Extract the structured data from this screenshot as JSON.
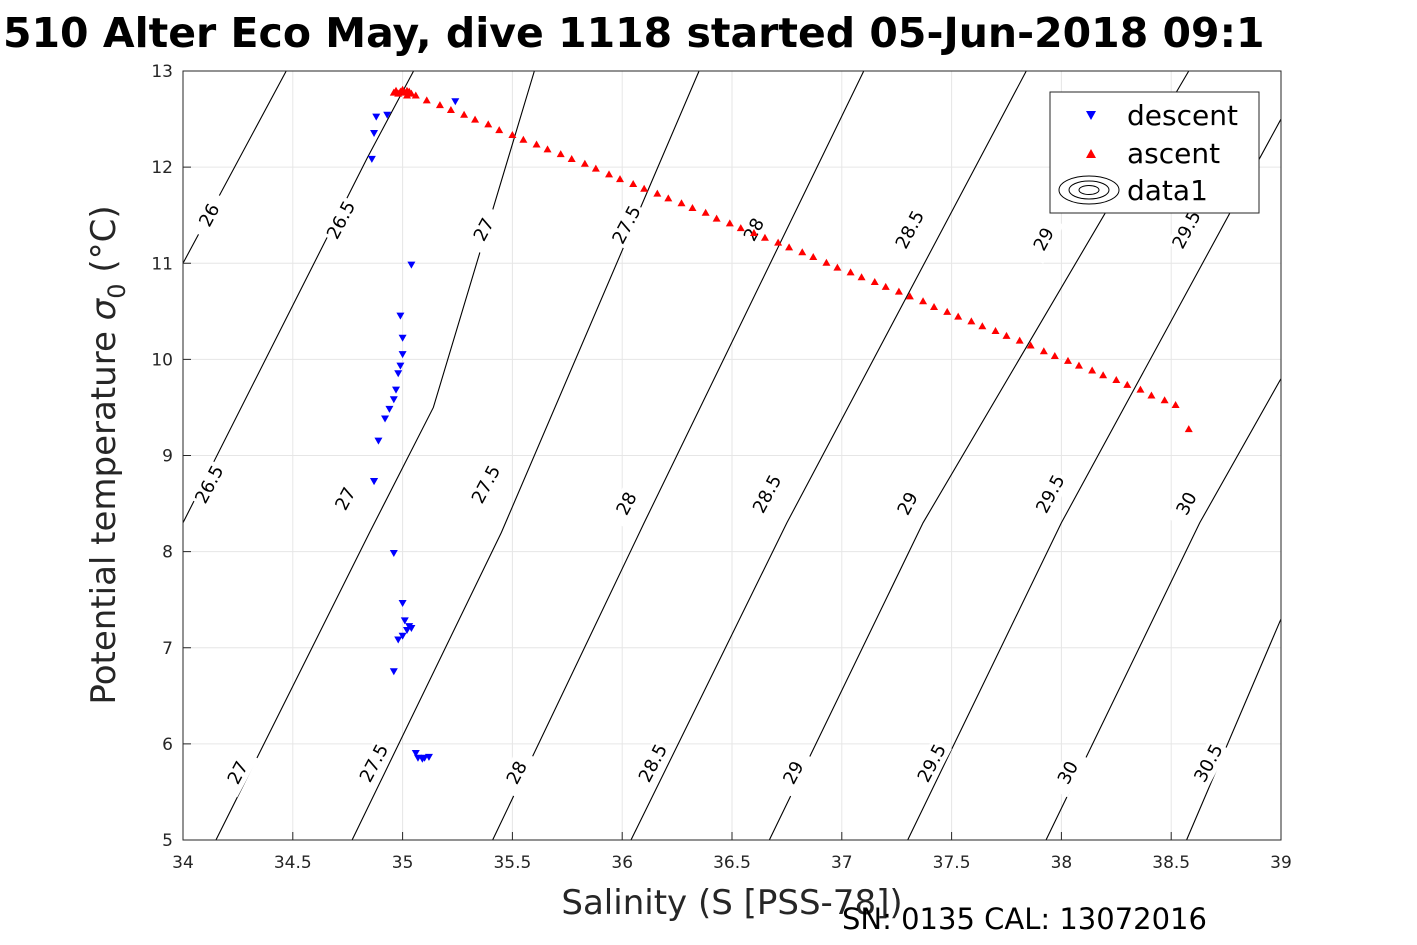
{
  "chart_data": {
    "type": "scatter",
    "title": "510 Alter Eco May, dive 1118 started 05-Jun-2018 09:1",
    "xlabel": "Salinity (S [PSS-78])",
    "ylabel_main": "Potential temperature ",
    "ylabel_sigma": "σ",
    "ylabel_sub": "0",
    "ylabel_unit": " (°C)",
    "footer": "SN: 0135  CAL: 13072016",
    "xlim": [
      34,
      39
    ],
    "ylim": [
      5,
      13
    ],
    "xticks": [
      34,
      34.5,
      35,
      35.5,
      36,
      36.5,
      37,
      37.5,
      38,
      38.5,
      39
    ],
    "xtick_labels": [
      "34",
      "34.5",
      "35",
      "35.5",
      "36",
      "36.5",
      "37",
      "37.5",
      "38",
      "38.5",
      "39"
    ],
    "yticks": [
      5,
      6,
      7,
      8,
      9,
      10,
      11,
      12,
      13
    ],
    "ytick_labels": [
      "5",
      "6",
      "7",
      "8",
      "9",
      "10",
      "11",
      "12",
      "13"
    ],
    "grid": true,
    "legend_position": "top-right",
    "legend": [
      "descent",
      "ascent",
      "data1"
    ],
    "series": [
      {
        "name": "descent",
        "marker": "triangle-down",
        "color": "#0000ff",
        "x": [
          34.86,
          34.87,
          34.88,
          34.93,
          35.24,
          35.04,
          34.99,
          35.0,
          35.0,
          34.99,
          34.98,
          34.97,
          34.96,
          34.94,
          34.92,
          34.89,
          34.87,
          34.87,
          34.96,
          35.0,
          35.01,
          35.03,
          35.02,
          35.04,
          35.0,
          34.98,
          34.96,
          35.06,
          35.07,
          35.09,
          35.1,
          35.12
        ],
        "y": [
          12.08,
          12.35,
          12.52,
          12.54,
          12.68,
          10.98,
          10.45,
          10.22,
          10.05,
          9.93,
          9.85,
          9.68,
          9.58,
          9.48,
          9.38,
          9.15,
          8.73,
          8.73,
          7.98,
          7.46,
          7.28,
          7.22,
          7.18,
          7.2,
          7.12,
          7.08,
          6.75,
          5.9,
          5.85,
          5.84,
          5.85,
          5.86
        ]
      },
      {
        "name": "ascent",
        "marker": "triangle-up",
        "color": "#ff0000",
        "x": [
          34.96,
          34.97,
          34.98,
          34.99,
          35.0,
          35.01,
          35.02,
          35.03,
          35.04,
          35.02,
          35.0,
          35.06,
          35.11,
          35.17,
          35.22,
          35.28,
          35.33,
          35.39,
          35.44,
          35.5,
          35.55,
          35.61,
          35.66,
          35.72,
          35.77,
          35.83,
          35.88,
          35.94,
          35.99,
          36.05,
          36.1,
          36.16,
          36.21,
          36.27,
          36.32,
          36.38,
          36.43,
          36.49,
          36.54,
          36.6,
          36.65,
          36.71,
          36.76,
          36.82,
          36.87,
          36.93,
          36.98,
          37.04,
          37.09,
          37.15,
          37.2,
          37.26,
          37.31,
          37.37,
          37.42,
          37.48,
          37.53,
          37.59,
          37.64,
          37.7,
          37.75,
          37.81,
          37.86,
          37.92,
          37.97,
          38.03,
          38.08,
          38.14,
          38.19,
          38.25,
          38.3,
          38.36,
          38.41,
          38.47,
          38.52,
          38.58
        ],
        "y": [
          12.78,
          12.8,
          12.77,
          12.79,
          12.81,
          12.78,
          12.8,
          12.79,
          12.77,
          12.75,
          12.8,
          12.75,
          12.7,
          12.65,
          12.6,
          12.55,
          12.5,
          12.45,
          12.39,
          12.34,
          12.29,
          12.24,
          12.19,
          12.14,
          12.09,
          12.04,
          11.99,
          11.93,
          11.88,
          11.83,
          11.78,
          11.73,
          11.68,
          11.63,
          11.58,
          11.53,
          11.47,
          11.42,
          11.37,
          11.32,
          11.27,
          11.22,
          11.17,
          11.12,
          11.07,
          11.01,
          10.96,
          10.91,
          10.86,
          10.81,
          10.76,
          10.71,
          10.66,
          10.61,
          10.55,
          10.5,
          10.45,
          10.4,
          10.35,
          10.3,
          10.25,
          10.2,
          10.15,
          10.09,
          10.04,
          9.99,
          9.94,
          9.89,
          9.84,
          9.79,
          9.74,
          9.69,
          9.63,
          9.58,
          9.53,
          9.28
        ]
      }
    ],
    "isopycnals": [
      {
        "level": "26",
        "points": [
          [
            34.0,
            11.0
          ],
          [
            34.47,
            13.0
          ]
        ]
      },
      {
        "level": "26.5",
        "points": [
          [
            34.0,
            8.3
          ],
          [
            34.84,
            12.1
          ],
          [
            35.05,
            13.0
          ]
        ]
      },
      {
        "level": "27",
        "points": [
          [
            34.15,
            5.0
          ],
          [
            34.85,
            8.2
          ],
          [
            35.14,
            9.5
          ],
          [
            35.6,
            13.0
          ]
        ]
      },
      {
        "level": "27.5",
        "points": [
          [
            34.77,
            5.0
          ],
          [
            35.45,
            8.2
          ],
          [
            36.35,
            13.0
          ]
        ]
      },
      {
        "level": "28",
        "points": [
          [
            35.41,
            5.0
          ],
          [
            36.1,
            8.3
          ],
          [
            37.1,
            13.0
          ]
        ]
      },
      {
        "level": "28.5",
        "points": [
          [
            36.04,
            5.0
          ],
          [
            36.75,
            8.3
          ],
          [
            37.84,
            13.0
          ]
        ]
      },
      {
        "level": "29",
        "points": [
          [
            36.67,
            5.0
          ],
          [
            37.37,
            8.3
          ],
          [
            38.58,
            13.0
          ]
        ]
      },
      {
        "level": "29.5",
        "points": [
          [
            37.3,
            5.0
          ],
          [
            38.0,
            8.3
          ],
          [
            39.0,
            12.5
          ]
        ]
      },
      {
        "level": "30",
        "points": [
          [
            37.93,
            5.0
          ],
          [
            38.63,
            8.3
          ],
          [
            39.0,
            9.8
          ]
        ]
      },
      {
        "level": "30.5",
        "points": [
          [
            38.57,
            5.0
          ],
          [
            39.0,
            7.3
          ]
        ]
      }
    ],
    "isopycnal_labels": [
      {
        "text": "26",
        "x": 34.12,
        "y": 11.5
      },
      {
        "text": "26.5",
        "x": 34.72,
        "y": 11.45
      },
      {
        "text": "27",
        "x": 35.37,
        "y": 11.35
      },
      {
        "text": "27.5",
        "x": 36.02,
        "y": 11.4
      },
      {
        "text": "28",
        "x": 36.6,
        "y": 11.35
      },
      {
        "text": "28.5",
        "x": 37.31,
        "y": 11.35
      },
      {
        "text": "29",
        "x": 37.92,
        "y": 11.25
      },
      {
        "text": "29.5",
        "x": 38.57,
        "y": 11.35
      },
      {
        "text": "26.5",
        "x": 34.12,
        "y": 8.7
      },
      {
        "text": "27",
        "x": 34.74,
        "y": 8.55
      },
      {
        "text": "27.5",
        "x": 35.38,
        "y": 8.7
      },
      {
        "text": "28",
        "x": 36.02,
        "y": 8.5
      },
      {
        "text": "28.5",
        "x": 36.66,
        "y": 8.6
      },
      {
        "text": "29",
        "x": 37.3,
        "y": 8.5
      },
      {
        "text": "29.5",
        "x": 37.95,
        "y": 8.6
      },
      {
        "text": "30",
        "x": 38.57,
        "y": 8.5
      },
      {
        "text": "27",
        "x": 34.25,
        "y": 5.7
      },
      {
        "text": "27.5",
        "x": 34.87,
        "y": 5.8
      },
      {
        "text": "28",
        "x": 35.52,
        "y": 5.7
      },
      {
        "text": "28.5",
        "x": 36.14,
        "y": 5.8
      },
      {
        "text": "29",
        "x": 36.78,
        "y": 5.7
      },
      {
        "text": "29.5",
        "x": 37.41,
        "y": 5.8
      },
      {
        "text": "30",
        "x": 38.03,
        "y": 5.7
      },
      {
        "text": "30.5",
        "x": 38.67,
        "y": 5.8
      }
    ]
  }
}
